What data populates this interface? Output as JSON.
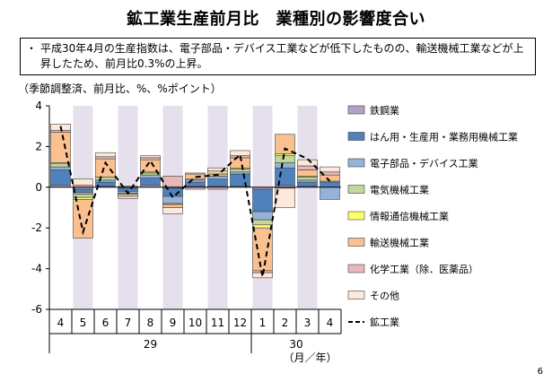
{
  "title": "鉱工業生産前月比　業種別の影響度合い",
  "note": "平成30年4月の生産指数は、電子部品・デバイス工業などが低下したものの、輸送機械工業などが上昇したため、前月比0.3%の上昇。",
  "note_bullet": "・",
  "unit_label": "（季節調整済、前月比、%、%ポイント）",
  "page_number": "6",
  "colors": {
    "iron_steel": "#b3a2c7",
    "production_machinery": "#4f81bd",
    "electronics": "#95b3d7",
    "electrical": "#c3d69b",
    "ict": "#ffff66",
    "transport": "#fac090",
    "chemical": "#e6b9b8",
    "other": "#fde9d9",
    "shading": "#e6e0ec"
  },
  "chart_data": {
    "type": "bar",
    "stacked": true,
    "categories": [
      "4",
      "5",
      "6",
      "7",
      "8",
      "9",
      "10",
      "11",
      "12",
      "1",
      "2",
      "3",
      "4"
    ],
    "year_labels": [
      {
        "label": "29",
        "from": 0,
        "to": 8
      },
      {
        "label": "30",
        "from": 9,
        "to": 12
      }
    ],
    "xlabel": "（月／年）",
    "ylim": [
      -6,
      4
    ],
    "yticks": [
      -6,
      -4,
      -2,
      0,
      2,
      4
    ],
    "shaded_categories": [
      1,
      3,
      5,
      7,
      9,
      11
    ],
    "series": [
      {
        "name": "鉄鋼業",
        "key": "iron_steel",
        "values": [
          0.1,
          -0.1,
          0.05,
          -0.05,
          0.1,
          -0.05,
          0.05,
          0.05,
          0.05,
          -0.1,
          0.1,
          0.05,
          0.0
        ]
      },
      {
        "name": "はん用・生産用・業務用機械工業",
        "key": "production_machinery",
        "values": [
          0.75,
          -0.15,
          0.2,
          -0.15,
          0.35,
          -0.4,
          0.2,
          0.35,
          0.6,
          -1.1,
          0.85,
          0.2,
          0.25
        ]
      },
      {
        "name": "電子部品・デバイス工業",
        "key": "electronics",
        "values": [
          0.15,
          -0.1,
          0.1,
          -0.1,
          0.15,
          -0.35,
          0.1,
          0.15,
          0.1,
          -0.4,
          0.25,
          0.1,
          -0.6
        ]
      },
      {
        "name": "電気機械工業",
        "key": "electrical",
        "values": [
          0.15,
          -0.15,
          0.15,
          -0.05,
          0.1,
          -0.05,
          0.05,
          0.1,
          0.15,
          -0.25,
          0.35,
          0.15,
          0.05
        ]
      },
      {
        "name": "情報通信機械工業",
        "key": "ict",
        "values": [
          0.05,
          -0.1,
          0.0,
          0.0,
          0.05,
          0.0,
          0.0,
          0.0,
          0.05,
          -0.15,
          0.1,
          0.05,
          0.0
        ]
      },
      {
        "name": "輸送機械工業",
        "key": "transport",
        "values": [
          1.5,
          -1.9,
          0.9,
          -0.1,
          0.6,
          -0.15,
          0.25,
          0.15,
          0.5,
          -2.1,
          0.95,
          0.3,
          0.3
        ]
      },
      {
        "name": "化学工業（除．医薬品）",
        "key": "chemical",
        "values": [
          0.1,
          0.1,
          0.1,
          0.05,
          0.1,
          0.55,
          -0.1,
          -0.1,
          0.1,
          -0.1,
          -0.05,
          0.2,
          0.15
        ]
      },
      {
        "name": "その他",
        "key": "other",
        "values": [
          0.3,
          0.3,
          0.2,
          -0.1,
          0.1,
          -0.3,
          0.05,
          0.15,
          0.25,
          -0.25,
          -0.95,
          0.3,
          0.25
        ]
      }
    ],
    "line": {
      "name": "鉱工業",
      "values": [
        3.0,
        -2.2,
        1.2,
        -0.3,
        1.3,
        -0.5,
        0.5,
        0.6,
        1.6,
        -4.4,
        1.9,
        1.4,
        0.3
      ]
    },
    "legend_position": "right"
  }
}
